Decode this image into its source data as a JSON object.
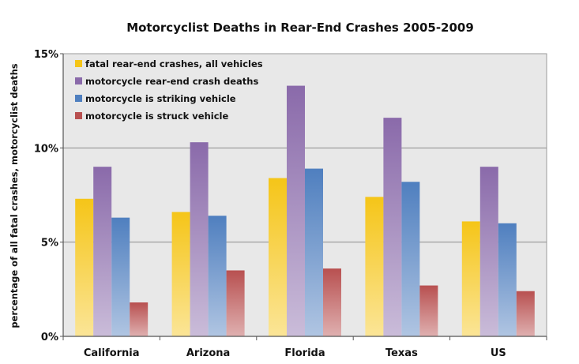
{
  "chart_data": {
    "type": "bar",
    "title": "Motorcyclist Deaths in Rear-End Crashes 2005-2009",
    "xlabel": "",
    "ylabel": "percentage of all fatal crashes, motorcyclist deaths",
    "categories": [
      "California",
      "Arizona",
      "Florida",
      "Texas",
      "US"
    ],
    "series": [
      {
        "name": "fatal rear-end crashes, all vehicles",
        "values": [
          7.3,
          6.6,
          8.4,
          7.4,
          6.1
        ],
        "color": "#f5c518"
      },
      {
        "name": "motorcycle rear-end crash deaths",
        "values": [
          9.0,
          10.3,
          13.3,
          11.6,
          9.0
        ],
        "color": "#8a6aaa"
      },
      {
        "name": "motorcycle is striking vehicle",
        "values": [
          6.3,
          6.4,
          8.9,
          8.2,
          6.0
        ],
        "color": "#4f7fbf"
      },
      {
        "name": "motorcycle is struck vehicle",
        "values": [
          1.8,
          3.5,
          3.6,
          2.7,
          2.4
        ],
        "color": "#b85050"
      }
    ],
    "ylim": [
      0,
      15
    ],
    "yticks": [
      0,
      5,
      10,
      15
    ],
    "ytick_labels": [
      "0%",
      "5%",
      "10%",
      "15%"
    ],
    "grid": true,
    "legend_position": "top-left",
    "plot_background": "#e8e8e8"
  }
}
